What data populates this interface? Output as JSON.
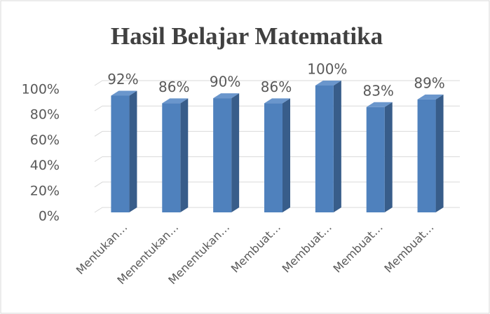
{
  "chart_data": {
    "type": "bar",
    "title": "Hasil Belajar Matematika",
    "categories": [
      "Mentukan…",
      "Menentukan…",
      "Menentukan…",
      "Membuat…",
      "Membuat…",
      "Membuat…",
      "Membuat…"
    ],
    "values": [
      92,
      86,
      90,
      86,
      100,
      83,
      89
    ],
    "value_labels": [
      "92%",
      "86%",
      "90%",
      "86%",
      "100%",
      "83%",
      "89%"
    ],
    "color": "#4f81bd",
    "ylim": [
      0,
      100
    ],
    "yticks": [
      {
        "value": 0,
        "label": "0%"
      },
      {
        "value": 20,
        "label": "20%"
      },
      {
        "value": 40,
        "label": "40%"
      },
      {
        "value": 60,
        "label": "60%"
      },
      {
        "value": 80,
        "label": "80%"
      },
      {
        "value": 100,
        "label": "100%"
      }
    ],
    "grid": true
  }
}
